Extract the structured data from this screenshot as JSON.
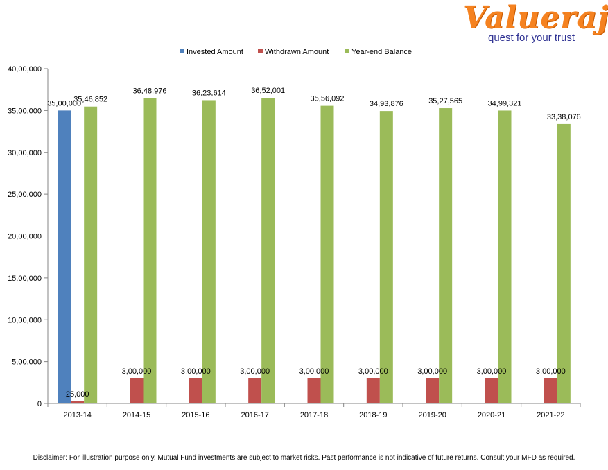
{
  "logo": {
    "name": "Valueraj",
    "tagline": "quest for your trust"
  },
  "disclaimer": "Disclaimer: For illustration purpose only. Mutual Fund investments are subject to market risks. Past performance is not indicative of future returns. Consult your MFD as required.",
  "colors": {
    "invested": "#4f81bd",
    "withdrawn": "#c0504d",
    "balance": "#9bbb59",
    "logo_orange": "#f58220",
    "logo_blue": "#2e3192"
  },
  "chart_data": {
    "type": "bar",
    "title": "",
    "xlabel": "",
    "ylabel": "",
    "legend_position": "top",
    "grid": false,
    "categories": [
      "2013-14",
      "2014-15",
      "2015-16",
      "2016-17",
      "2017-18",
      "2018-19",
      "2019-20",
      "2020-21",
      "2021-22"
    ],
    "ylim": [
      0,
      4000000
    ],
    "yticks": [
      0,
      500000,
      1000000,
      1500000,
      2000000,
      2500000,
      3000000,
      3500000,
      4000000
    ],
    "ytick_labels": [
      "0",
      "5,00,000",
      "10,00,000",
      "15,00,000",
      "20,00,000",
      "25,00,000",
      "30,00,000",
      "35,00,000",
      "40,00,000"
    ],
    "series": [
      {
        "name": "Invested Amount",
        "color_key": "invested",
        "values": [
          3500000,
          null,
          null,
          null,
          null,
          null,
          null,
          null,
          null
        ],
        "labels": [
          "35,00,000",
          "",
          "",
          "",
          "",
          "",
          "",
          "",
          ""
        ]
      },
      {
        "name": "Withdrawn Amount",
        "color_key": "withdrawn",
        "values": [
          25000,
          300000,
          300000,
          300000,
          300000,
          300000,
          300000,
          300000,
          300000
        ],
        "labels": [
          "25,000",
          "3,00,000",
          "3,00,000",
          "3,00,000",
          "3,00,000",
          "3,00,000",
          "3,00,000",
          "3,00,000",
          "3,00,000"
        ]
      },
      {
        "name": "Year-end Balance",
        "color_key": "balance",
        "values": [
          3546852,
          3648976,
          3623614,
          3652001,
          3556092,
          3493876,
          3527565,
          3499321,
          3338076
        ],
        "labels": [
          "35,46,852",
          "36,48,976",
          "36,23,614",
          "36,52,001",
          "35,56,092",
          "34,93,876",
          "35,27,565",
          "34,99,321",
          "33,38,076"
        ]
      }
    ]
  }
}
